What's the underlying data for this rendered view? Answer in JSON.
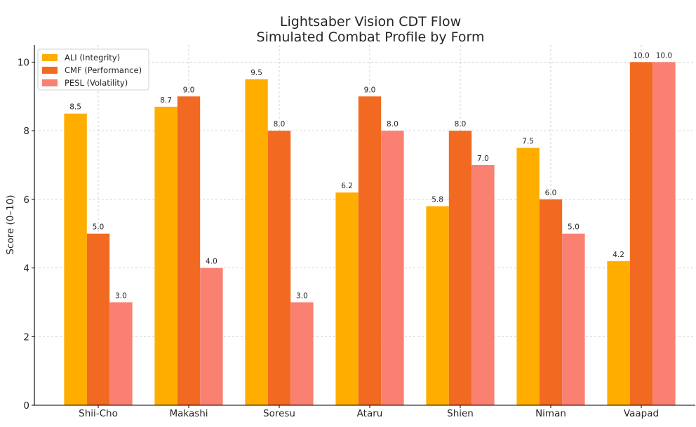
{
  "chart_data": {
    "type": "bar",
    "title": "Lightsaber Vision CDT Flow",
    "subtitle": "Simulated Combat Profile by Form",
    "xlabel": "",
    "ylabel": "Score (0–10)",
    "ylim": [
      0,
      10.5
    ],
    "yticks": [
      "0",
      "2",
      "4",
      "6",
      "8",
      "10"
    ],
    "grid": true,
    "legend_position": "top-left",
    "categories": [
      "Shii-Cho",
      "Makashi",
      "Soresu",
      "Ataru",
      "Shien",
      "Niman",
      "Vaapad"
    ],
    "series": [
      {
        "name": "ALI (Integrity)",
        "color": "#FFAE00",
        "values": [
          8.5,
          8.7,
          9.5,
          6.2,
          5.8,
          7.5,
          4.2
        ],
        "labels": [
          "8.5",
          "8.7",
          "9.5",
          "6.2",
          "5.8",
          "7.5",
          "4.2"
        ]
      },
      {
        "name": "CMF (Performance)",
        "color": "#F26A22",
        "values": [
          5.0,
          9.0,
          8.0,
          9.0,
          8.0,
          6.0,
          10.0
        ],
        "labels": [
          "5.0",
          "9.0",
          "8.0",
          "9.0",
          "8.0",
          "6.0",
          "10.0"
        ]
      },
      {
        "name": "PESL (Volatility)",
        "color": "#FA8072",
        "values": [
          3.0,
          4.0,
          3.0,
          8.0,
          7.0,
          5.0,
          10.0
        ],
        "labels": [
          "3.0",
          "4.0",
          "3.0",
          "8.0",
          "7.0",
          "5.0",
          "10.0"
        ]
      }
    ]
  }
}
